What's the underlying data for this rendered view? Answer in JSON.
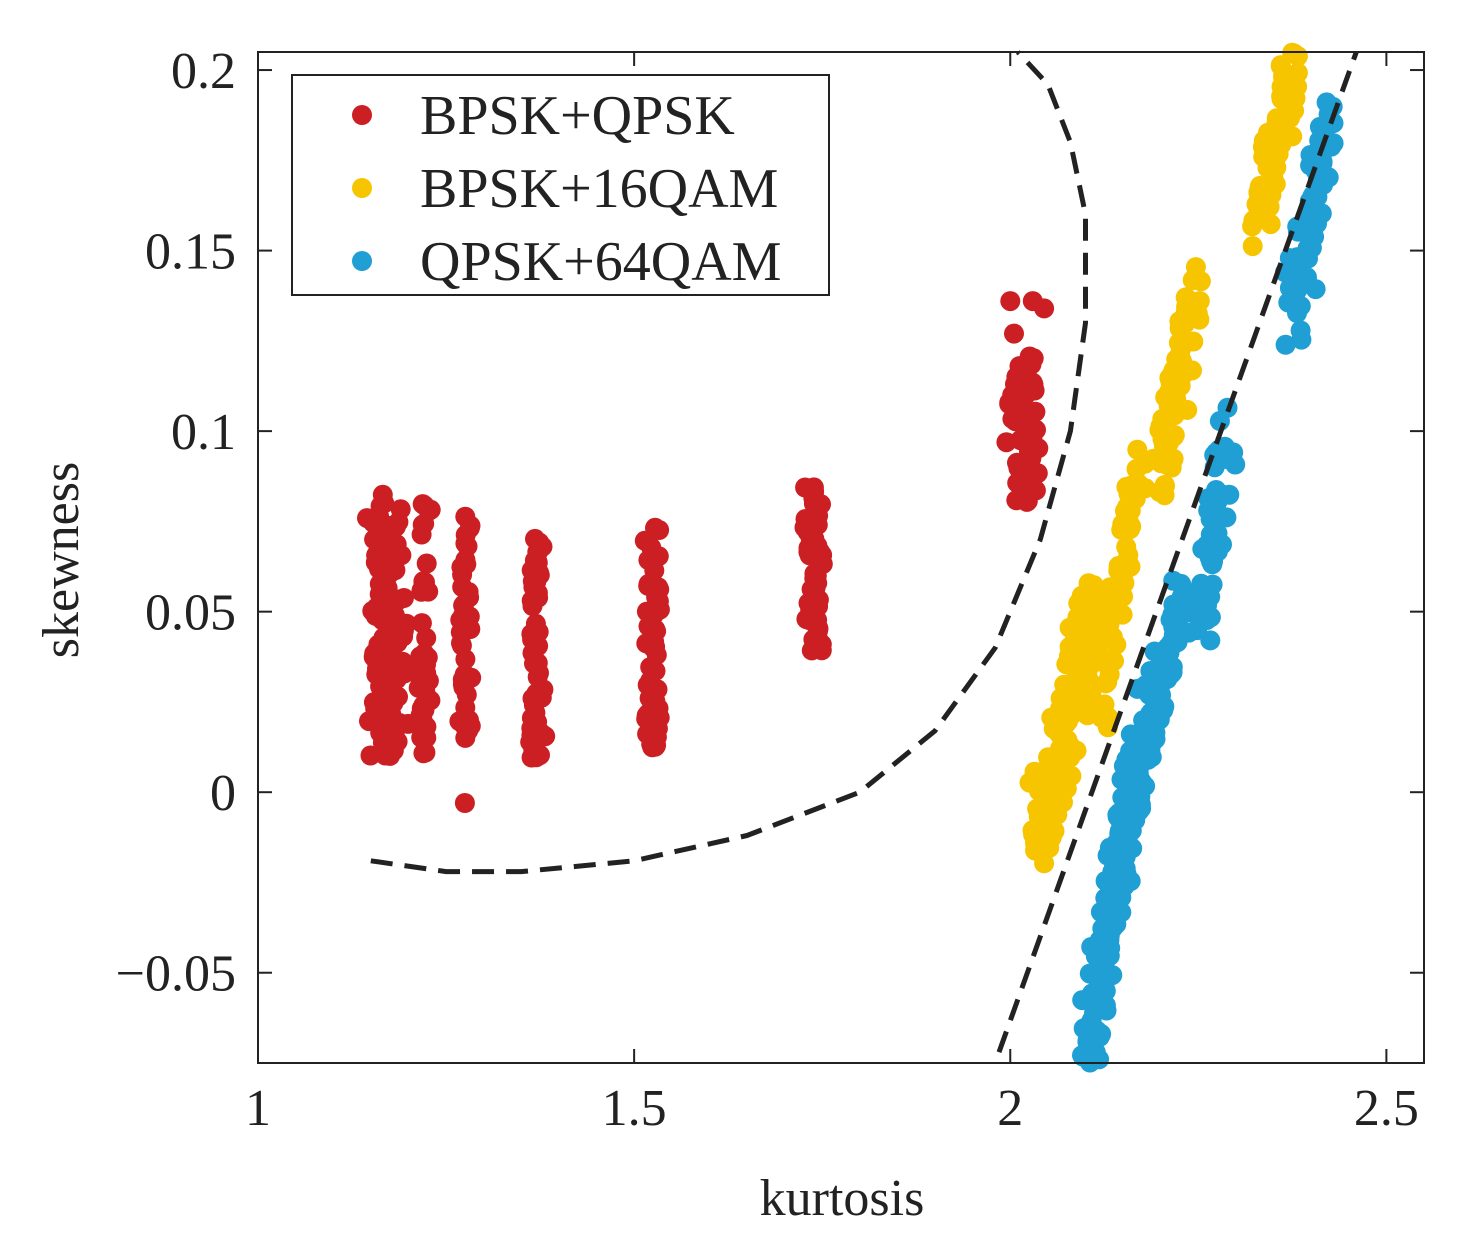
{
  "chart_data": {
    "type": "scatter",
    "title": "",
    "xlabel": "kurtosis",
    "ylabel": "skewness",
    "xlim": [
      1,
      2.55
    ],
    "ylim": [
      -0.075,
      0.205
    ],
    "xticks": [
      1,
      1.5,
      2,
      2.5
    ],
    "xtick_labels": [
      "1",
      "1.5",
      "2",
      "2.5"
    ],
    "yticks": [
      -0.05,
      0,
      0.05,
      0.1,
      0.15,
      0.2
    ],
    "ytick_labels": [
      "−0.05",
      "0",
      "0.05",
      "0.1",
      "0.15",
      "0.2"
    ],
    "legend_position": "top-left",
    "series": [
      {
        "name": "BPSK+QPSK",
        "color": "#cc1f24",
        "clusters": [
          {
            "x": 1.17,
            "x_spread": 0.02,
            "y_min": 0.01,
            "y_max": 0.083,
            "count": 170
          },
          {
            "x": 1.22,
            "x_spread": 0.01,
            "y_min": 0.01,
            "y_max": 0.08,
            "count": 45
          },
          {
            "x": 1.275,
            "x_spread": 0.008,
            "y_min": 0.01,
            "y_max": 0.077,
            "count": 45
          },
          {
            "x": 1.37,
            "x_spread": 0.01,
            "y_min": 0.009,
            "y_max": 0.076,
            "count": 50
          },
          {
            "x": 1.525,
            "x_spread": 0.012,
            "y_min": 0.011,
            "y_max": 0.074,
            "count": 55
          },
          {
            "x": 1.74,
            "x_spread": 0.012,
            "y_min": 0.039,
            "y_max": 0.085,
            "count": 60
          },
          {
            "x": 2.02,
            "x_spread": 0.022,
            "y_min": 0.08,
            "y_max": 0.122,
            "count": 75
          }
        ],
        "points": [
          {
            "x": 1.275,
            "y": -0.003
          },
          {
            "x": 2.0,
            "y": 0.136
          },
          {
            "x": 2.045,
            "y": 0.134
          },
          {
            "x": 2.03,
            "y": 0.136
          },
          {
            "x": 2.005,
            "y": 0.127
          }
        ]
      },
      {
        "name": "BPSK+16QAM",
        "color": "#f7c400",
        "bands": [
          {
            "x0": 2.04,
            "y0": -0.015,
            "x1": 2.11,
            "y1": 0.055,
            "spread": 0.018,
            "count": 180
          },
          {
            "x0": 2.12,
            "y0": 0.02,
            "x1": 2.17,
            "y1": 0.09,
            "spread": 0.01,
            "count": 60
          },
          {
            "x0": 2.2,
            "y0": 0.085,
            "x1": 2.24,
            "y1": 0.14,
            "spread": 0.012,
            "count": 70
          },
          {
            "x0": 2.33,
            "y0": 0.155,
            "x1": 2.38,
            "y1": 0.205,
            "spread": 0.012,
            "count": 70
          }
        ]
      },
      {
        "name": "QPSK+64QAM",
        "color": "#1f9fd4",
        "bands": [
          {
            "x0": 2.1,
            "y0": -0.075,
            "x1": 2.17,
            "y1": 0.01,
            "spread": 0.013,
            "count": 200
          },
          {
            "x0": 2.16,
            "y0": 0.0,
            "x1": 2.23,
            "y1": 0.055,
            "spread": 0.013,
            "count": 90
          },
          {
            "x0": 2.25,
            "y0": 0.045,
            "x1": 2.29,
            "y1": 0.1,
            "spread": 0.013,
            "count": 60
          },
          {
            "x0": 2.37,
            "y0": 0.13,
            "x1": 2.43,
            "y1": 0.19,
            "spread": 0.013,
            "count": 70
          }
        ]
      }
    ],
    "boundaries": [
      {
        "name": "curved-boundary",
        "style": "dashed",
        "points": [
          [
            1.15,
            -0.019
          ],
          [
            1.25,
            -0.022
          ],
          [
            1.35,
            -0.022
          ],
          [
            1.5,
            -0.019
          ],
          [
            1.65,
            -0.012
          ],
          [
            1.8,
            0.0
          ],
          [
            1.9,
            0.017
          ],
          [
            1.98,
            0.04
          ],
          [
            2.04,
            0.07
          ],
          [
            2.08,
            0.1
          ],
          [
            2.1,
            0.13
          ],
          [
            2.1,
            0.16
          ],
          [
            2.08,
            0.18
          ],
          [
            2.05,
            0.196
          ],
          [
            2.01,
            0.205
          ]
        ]
      },
      {
        "name": "linear-boundary",
        "style": "dashed",
        "points": [
          [
            1.985,
            -0.072
          ],
          [
            2.46,
            0.205
          ]
        ]
      }
    ]
  }
}
